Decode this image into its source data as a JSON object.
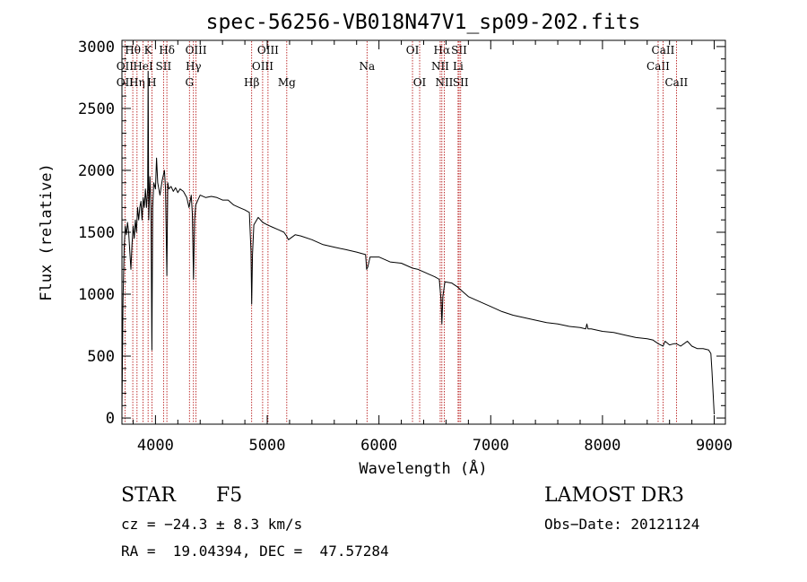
{
  "chart_data": {
    "type": "line",
    "title": "spec-56256-VB018N47V1_sp09-202.fits",
    "xlabel": "Wavelength (Å)",
    "ylabel": "Flux (relative)",
    "xlim": [
      3700,
      9100
    ],
    "ylim": [
      -50,
      3050
    ],
    "xticks": [
      4000,
      5000,
      6000,
      7000,
      8000,
      9000
    ],
    "yticks": [
      0,
      500,
      1000,
      1500,
      2000,
      2500,
      3000
    ],
    "series": [
      {
        "name": "flux",
        "x": [
          3700,
          3710,
          3720,
          3730,
          3740,
          3750,
          3760,
          3770,
          3780,
          3790,
          3800,
          3810,
          3820,
          3830,
          3840,
          3850,
          3860,
          3870,
          3880,
          3890,
          3900,
          3910,
          3920,
          3930,
          3934,
          3940,
          3950,
          3960,
          3968,
          3975,
          3985,
          4000,
          4010,
          4020,
          4040,
          4060,
          4080,
          4090,
          4102,
          4110,
          4120,
          4140,
          4160,
          4180,
          4200,
          4220,
          4250,
          4280,
          4300,
          4320,
          4330,
          4340,
          4350,
          4360,
          4380,
          4400,
          4450,
          4500,
          4550,
          4600,
          4650,
          4700,
          4750,
          4800,
          4840,
          4855,
          4861,
          4868,
          4880,
          4920,
          4960,
          5000,
          5050,
          5100,
          5150,
          5172,
          5190,
          5250,
          5300,
          5400,
          5500,
          5600,
          5700,
          5800,
          5880,
          5890,
          5900,
          5920,
          6000,
          6100,
          6200,
          6300,
          6350,
          6400,
          6450,
          6500,
          6540,
          6555,
          6563,
          6572,
          6590,
          6650,
          6700,
          6750,
          6800,
          6900,
          7000,
          7100,
          7200,
          7300,
          7400,
          7500,
          7600,
          7700,
          7800,
          7850,
          7860,
          7870,
          7900,
          8000,
          8100,
          8200,
          8300,
          8400,
          8450,
          8500,
          8542,
          8560,
          8600,
          8640,
          8662,
          8700,
          8760,
          8800,
          8850,
          8900,
          8950,
          8970,
          8980,
          8990,
          9000
        ],
        "values": [
          40,
          950,
          1380,
          1550,
          1480,
          1580,
          1500,
          1350,
          1200,
          1400,
          1550,
          1450,
          1600,
          1500,
          1700,
          1600,
          1700,
          1750,
          1600,
          1780,
          1700,
          1850,
          1700,
          1850,
          2800,
          1600,
          1950,
          1700,
          550,
          1700,
          1900,
          1850,
          2100,
          1900,
          1800,
          1920,
          2000,
          1850,
          1150,
          1900,
          1850,
          1870,
          1830,
          1860,
          1820,
          1850,
          1830,
          1780,
          1700,
          1800,
          1650,
          1120,
          1600,
          1720,
          1760,
          1800,
          1780,
          1790,
          1780,
          1760,
          1760,
          1720,
          1700,
          1680,
          1660,
          1350,
          920,
          1320,
          1560,
          1620,
          1580,
          1560,
          1540,
          1520,
          1500,
          1470,
          1440,
          1480,
          1470,
          1440,
          1400,
          1380,
          1360,
          1340,
          1320,
          1200,
          1220,
          1300,
          1300,
          1260,
          1250,
          1210,
          1200,
          1180,
          1160,
          1140,
          1120,
          960,
          760,
          980,
          1100,
          1090,
          1060,
          1020,
          980,
          940,
          900,
          860,
          830,
          810,
          790,
          770,
          760,
          740,
          730,
          720,
          760,
          720,
          720,
          700,
          690,
          670,
          650,
          640,
          630,
          600,
          580,
          620,
          590,
          600,
          600,
          580,
          620,
          580,
          560,
          560,
          550,
          520,
          380,
          200,
          30
        ]
      }
    ],
    "spectral_lines": [
      {
        "label": "Hθ",
        "wavelength": 3797,
        "row": 1
      },
      {
        "label": "OII",
        "wavelength": 3727,
        "row": 2
      },
      {
        "label": "OII",
        "wavelength": 3727,
        "row": 3
      },
      {
        "label": "Hη",
        "wavelength": 3835,
        "row": 3
      },
      {
        "label": "HeI",
        "wavelength": 3889,
        "row": 2
      },
      {
        "label": "K",
        "wavelength": 3934,
        "row": 1
      },
      {
        "label": "H",
        "wavelength": 3968,
        "row": 3
      },
      {
        "label": "SII",
        "wavelength": 4072,
        "row": 2
      },
      {
        "label": "Hδ",
        "wavelength": 4102,
        "row": 1
      },
      {
        "label": "OIII",
        "wavelength": 4363,
        "row": 1
      },
      {
        "label": "Hγ",
        "wavelength": 4340,
        "row": 2
      },
      {
        "label": "G",
        "wavelength": 4304,
        "row": 3
      },
      {
        "label": "Hβ",
        "wavelength": 4861,
        "row": 3
      },
      {
        "label": "OIII",
        "wavelength": 4959,
        "row": 2
      },
      {
        "label": "OIII",
        "wavelength": 5007,
        "row": 1
      },
      {
        "label": "Mg",
        "wavelength": 5175,
        "row": 3
      },
      {
        "label": "Na",
        "wavelength": 5893,
        "row": 2
      },
      {
        "label": "OI",
        "wavelength": 6300,
        "row": 1
      },
      {
        "label": "OI",
        "wavelength": 6364,
        "row": 3
      },
      {
        "label": "Hα",
        "wavelength": 6563,
        "row": 1
      },
      {
        "label": "NII",
        "wavelength": 6548,
        "row": 2
      },
      {
        "label": "NII",
        "wavelength": 6584,
        "row": 3
      },
      {
        "label": "SII",
        "wavelength": 6717,
        "row": 1
      },
      {
        "label": "SII",
        "wavelength": 6731,
        "row": 3
      },
      {
        "label": "Li",
        "wavelength": 6708,
        "row": 2
      },
      {
        "label": "CaII",
        "wavelength": 8498,
        "row": 2
      },
      {
        "label": "CaII",
        "wavelength": 8542,
        "row": 1
      },
      {
        "label": "CaII",
        "wavelength": 8662,
        "row": 3
      }
    ]
  },
  "info": {
    "class_label": "STAR",
    "subclass": "F5",
    "survey": "LAMOST DR3",
    "cz": "cz = −24.3 ± 8.3 km/s",
    "obs_date": "Obs−Date: 20121124",
    "coords": "RA =  19.04394, DEC =  47.57284"
  },
  "colors": {
    "line_marker": "#b00000",
    "spectrum": "#000000"
  }
}
